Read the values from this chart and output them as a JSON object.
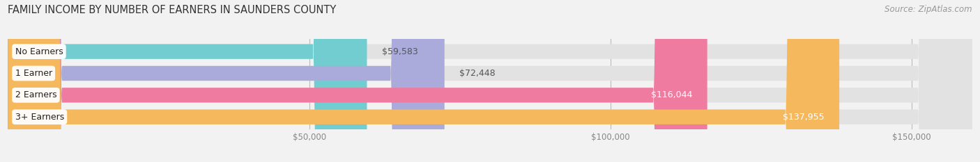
{
  "title": "FAMILY INCOME BY NUMBER OF EARNERS IN SAUNDERS COUNTY",
  "source": "Source: ZipAtlas.com",
  "categories": [
    "No Earners",
    "1 Earner",
    "2 Earners",
    "3+ Earners"
  ],
  "values": [
    59583,
    72448,
    116044,
    137955
  ],
  "bar_colors": [
    "#72cdd1",
    "#aaaadb",
    "#f07ba0",
    "#f5b85c"
  ],
  "xmin": 0,
  "xmax": 160000,
  "xticks": [
    50000,
    100000,
    150000
  ],
  "xticklabels": [
    "$50,000",
    "$100,000",
    "$150,000"
  ],
  "value_labels": [
    "$59,583",
    "$72,448",
    "$116,044",
    "$137,955"
  ],
  "bg_color": "#f2f2f2",
  "bar_bg_color": "#e2e2e2",
  "title_fontsize": 10.5,
  "source_fontsize": 8.5,
  "label_fontsize": 9.0
}
